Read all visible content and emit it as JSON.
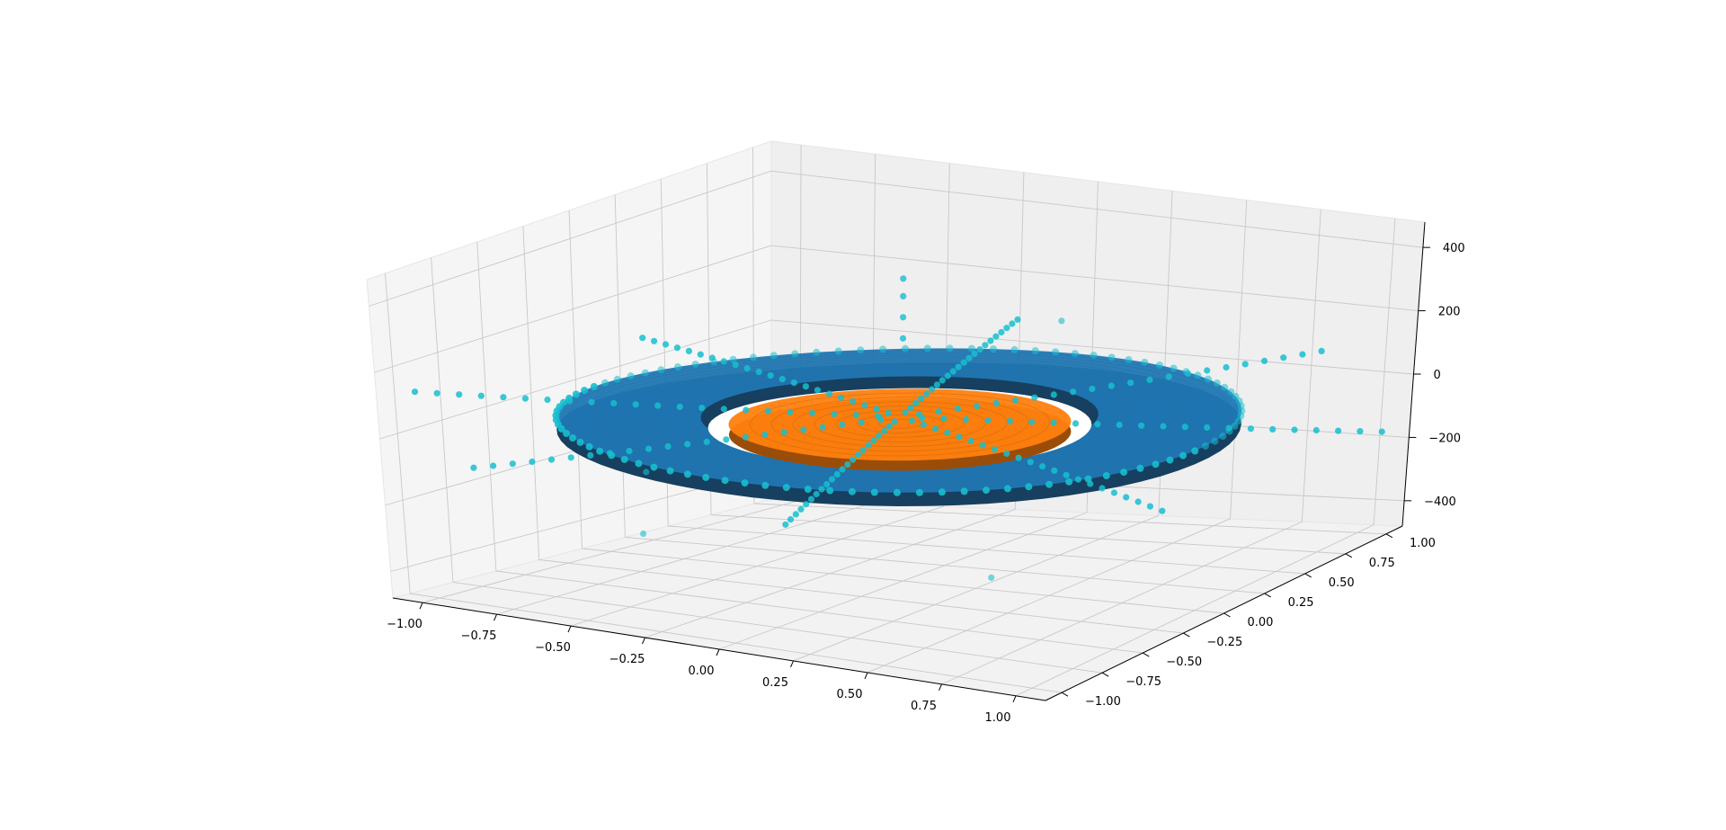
{
  "chart_data": {
    "type": "3d-scatter-surface",
    "title": "",
    "axes": {
      "x": {
        "ticks": [
          -1.0,
          -0.75,
          -0.5,
          -0.25,
          0.0,
          0.25,
          0.5,
          0.75,
          1.0
        ],
        "tick_labels": [
          "−1.00",
          "−0.75",
          "−0.50",
          "−0.25",
          "0.00",
          "0.25",
          "0.50",
          "0.75",
          "1.00"
        ],
        "range": [
          -1.1,
          1.1
        ],
        "label": ""
      },
      "y": {
        "ticks": [
          -1.0,
          -0.75,
          -0.5,
          -0.25,
          0.0,
          0.25,
          0.5,
          0.75,
          1.0
        ],
        "tick_labels": [
          "−1.00",
          "−0.75",
          "−0.50",
          "−0.25",
          "0.00",
          "0.25",
          "0.50",
          "0.75",
          "1.00"
        ],
        "range": [
          -1.1,
          1.1
        ],
        "label": ""
      },
      "z": {
        "ticks": [
          -400,
          -200,
          0,
          200,
          400
        ],
        "tick_labels": [
          "−400",
          "−200",
          "0",
          "200",
          "400"
        ],
        "range": [
          -480,
          480
        ],
        "label": ""
      }
    },
    "grid": true,
    "series": [
      {
        "kind": "surface-annulus",
        "color": "#1f77b4",
        "r_inner": 0.58,
        "r_outer": 1.0,
        "z": 0
      },
      {
        "kind": "surface-disk",
        "color": "#ff7f0e",
        "r_outer": 0.5,
        "z": -20
      },
      {
        "kind": "scatter-ring",
        "color": "#17becf",
        "r": 1.0,
        "z": 0,
        "count": 96
      },
      {
        "kind": "scatter-spokes",
        "color": "#17becf",
        "count": 8,
        "r_max": 1.45
      },
      {
        "kind": "scatter-vertical",
        "color": "#17becf",
        "points": [
          [
            -0.42,
            0.72,
            230
          ],
          [
            -0.42,
            0.72,
            180
          ],
          [
            -0.42,
            0.72,
            120
          ],
          [
            -0.42,
            0.72,
            60
          ]
        ]
      },
      {
        "kind": "scatter-outliers",
        "color": "#17becf",
        "points": [
          [
            0.1,
            0.75,
            150
          ],
          [
            -0.35,
            -0.9,
            -220
          ],
          [
            0.62,
            -0.55,
            -300
          ],
          [
            -0.75,
            -0.2,
            -200
          ]
        ]
      }
    ]
  }
}
